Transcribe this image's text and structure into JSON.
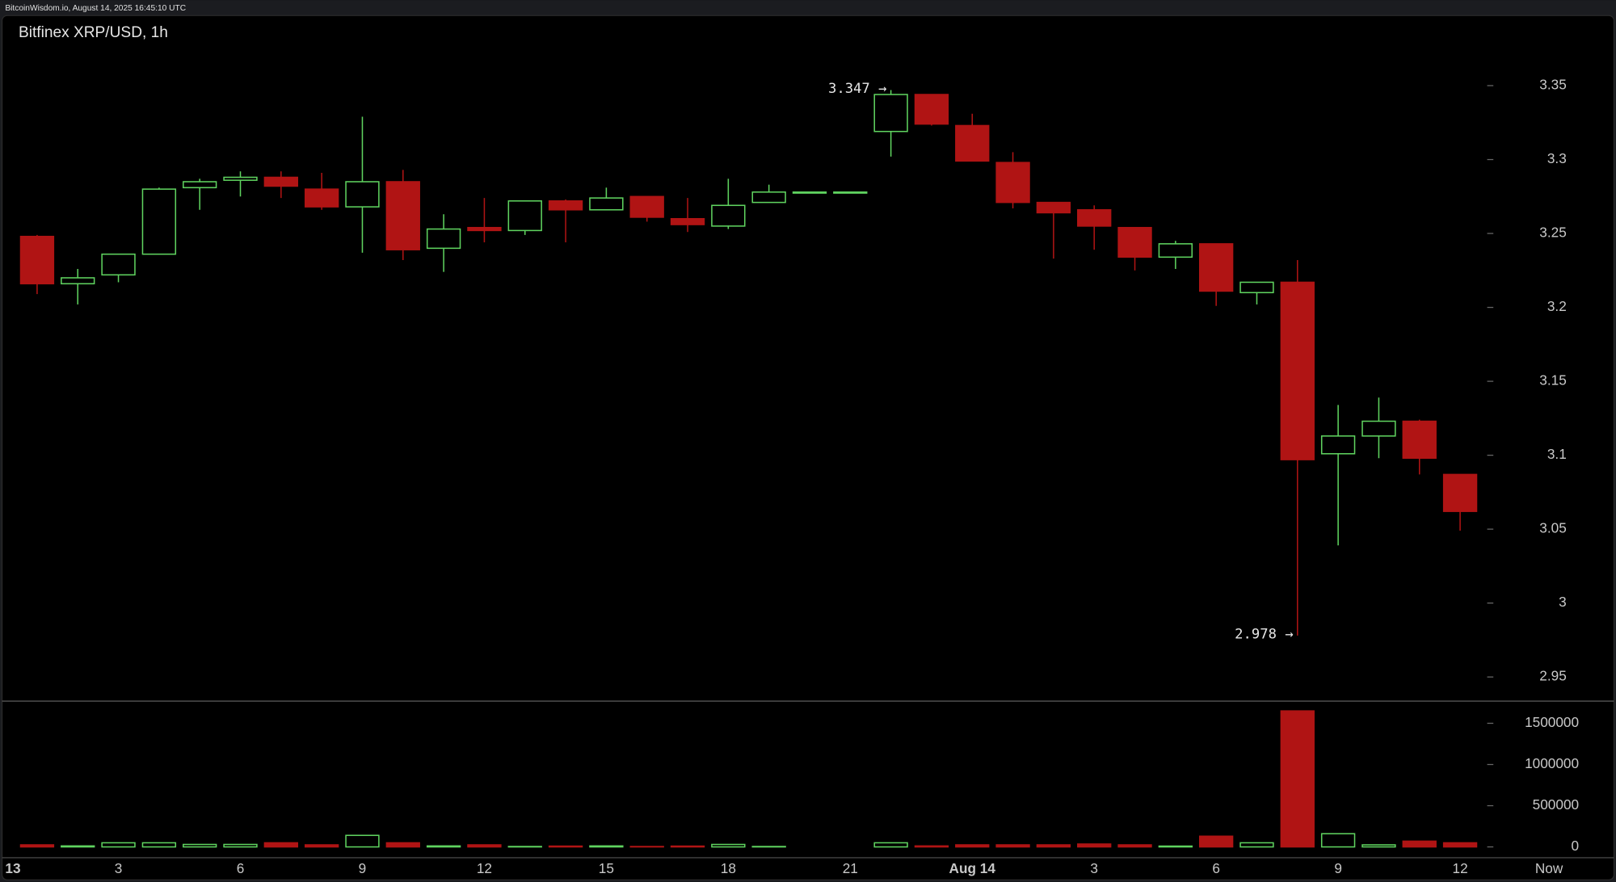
{
  "header": "BitcoinWisdom.io, August 14, 2025 16:45:10 UTC",
  "chart_data": {
    "type": "candlestick",
    "title": "Bitfinex XRP/USD, 1h",
    "categories": [
      null,
      null,
      "3",
      null,
      null,
      "6",
      null,
      null,
      "9",
      null,
      null,
      "12",
      null,
      null,
      "15",
      null,
      null,
      "18",
      null,
      null,
      "21",
      null,
      null,
      "Aug 14",
      null,
      null,
      "3",
      null,
      null,
      "6",
      null,
      null,
      "9",
      null,
      null,
      "12"
    ],
    "x_start_label": "13",
    "x_end_label": "Now",
    "open": [
      3.248,
      3.216,
      3.222,
      3.236,
      3.281,
      3.286,
      3.288,
      3.28,
      3.268,
      3.285,
      3.24,
      3.254,
      3.252,
      3.272,
      3.266,
      3.275,
      3.26,
      3.255,
      3.271,
      3.278,
      3.278,
      3.319,
      3.344,
      3.323,
      3.298,
      3.271,
      3.266,
      3.254,
      3.234,
      3.243,
      3.21,
      3.217,
      3.101,
      3.113,
      3.123,
      3.087
    ],
    "high": [
      3.249,
      3.226,
      3.236,
      3.281,
      3.287,
      3.292,
      3.292,
      3.291,
      3.329,
      3.293,
      3.263,
      3.274,
      3.272,
      3.273,
      3.281,
      3.275,
      3.274,
      3.287,
      3.283,
      3.278,
      3.278,
      3.347,
      3.344,
      3.331,
      3.305,
      3.271,
      3.269,
      3.254,
      3.245,
      3.243,
      3.217,
      3.232,
      3.134,
      3.139,
      3.124,
      3.087
    ],
    "low": [
      3.209,
      3.202,
      3.217,
      3.236,
      3.266,
      3.275,
      3.274,
      3.266,
      3.237,
      3.232,
      3.224,
      3.244,
      3.249,
      3.244,
      3.266,
      3.258,
      3.251,
      3.253,
      3.271,
      3.278,
      3.278,
      3.302,
      3.323,
      3.299,
      3.267,
      3.233,
      3.239,
      3.225,
      3.226,
      3.201,
      3.202,
      2.978,
      3.039,
      3.098,
      3.087,
      3.049
    ],
    "close": [
      3.216,
      3.22,
      3.236,
      3.28,
      3.285,
      3.288,
      3.282,
      3.268,
      3.285,
      3.239,
      3.253,
      3.252,
      3.272,
      3.266,
      3.274,
      3.261,
      3.256,
      3.269,
      3.278,
      3.278,
      3.278,
      3.344,
      3.324,
      3.299,
      3.271,
      3.264,
      3.255,
      3.234,
      3.243,
      3.211,
      3.217,
      3.097,
      3.113,
      3.123,
      3.098,
      3.062
    ],
    "volume": [
      25000,
      12000,
      50000,
      50000,
      30000,
      30000,
      50000,
      25000,
      140000,
      50000,
      12000,
      25000,
      5000,
      10000,
      12000,
      5000,
      10000,
      30000,
      5000,
      0,
      0,
      50000,
      12000,
      25000,
      25000,
      25000,
      35000,
      25000,
      10000,
      130000,
      50000,
      1650000,
      160000,
      25000,
      70000,
      50000
    ],
    "up_color": "#5fd35f",
    "down_color": "#b01414",
    "ylim": [
      2.9375,
      3.38
    ],
    "yticks": [
      2.95,
      3,
      3.05,
      3.1,
      3.15,
      3.2,
      3.25,
      3.3,
      3.35
    ],
    "volume_ylim": [
      0,
      1700000
    ],
    "volume_yticks": [
      0,
      500000,
      1000000,
      1500000
    ],
    "annotations": [
      "3.347 →",
      "2.978 →"
    ]
  }
}
